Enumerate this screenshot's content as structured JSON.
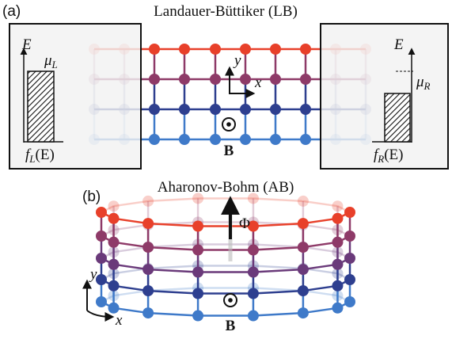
{
  "panel_a": {
    "label": "(a)",
    "title": "Landauer-Büttiker (LB)",
    "left_lead": {
      "energy_axis": "E",
      "mu": {
        "symbol": "μ",
        "sub": "L"
      },
      "distribution": {
        "symbol": "f",
        "sub": "L",
        "arg": "(E)"
      }
    },
    "right_lead": {
      "energy_axis": "E",
      "mu": {
        "symbol": "μ",
        "sub": "R"
      },
      "distribution": {
        "symbol": "f",
        "sub": "R",
        "arg": "(E)"
      }
    },
    "axes": {
      "y": "y",
      "x": "x"
    },
    "field_label": "B"
  },
  "panel_b": {
    "label": "(b)",
    "title": "Aharonov-Bohm (AB)",
    "flux": "Φ",
    "axes": {
      "y": "y",
      "x": "x"
    },
    "field_label": "B"
  }
}
